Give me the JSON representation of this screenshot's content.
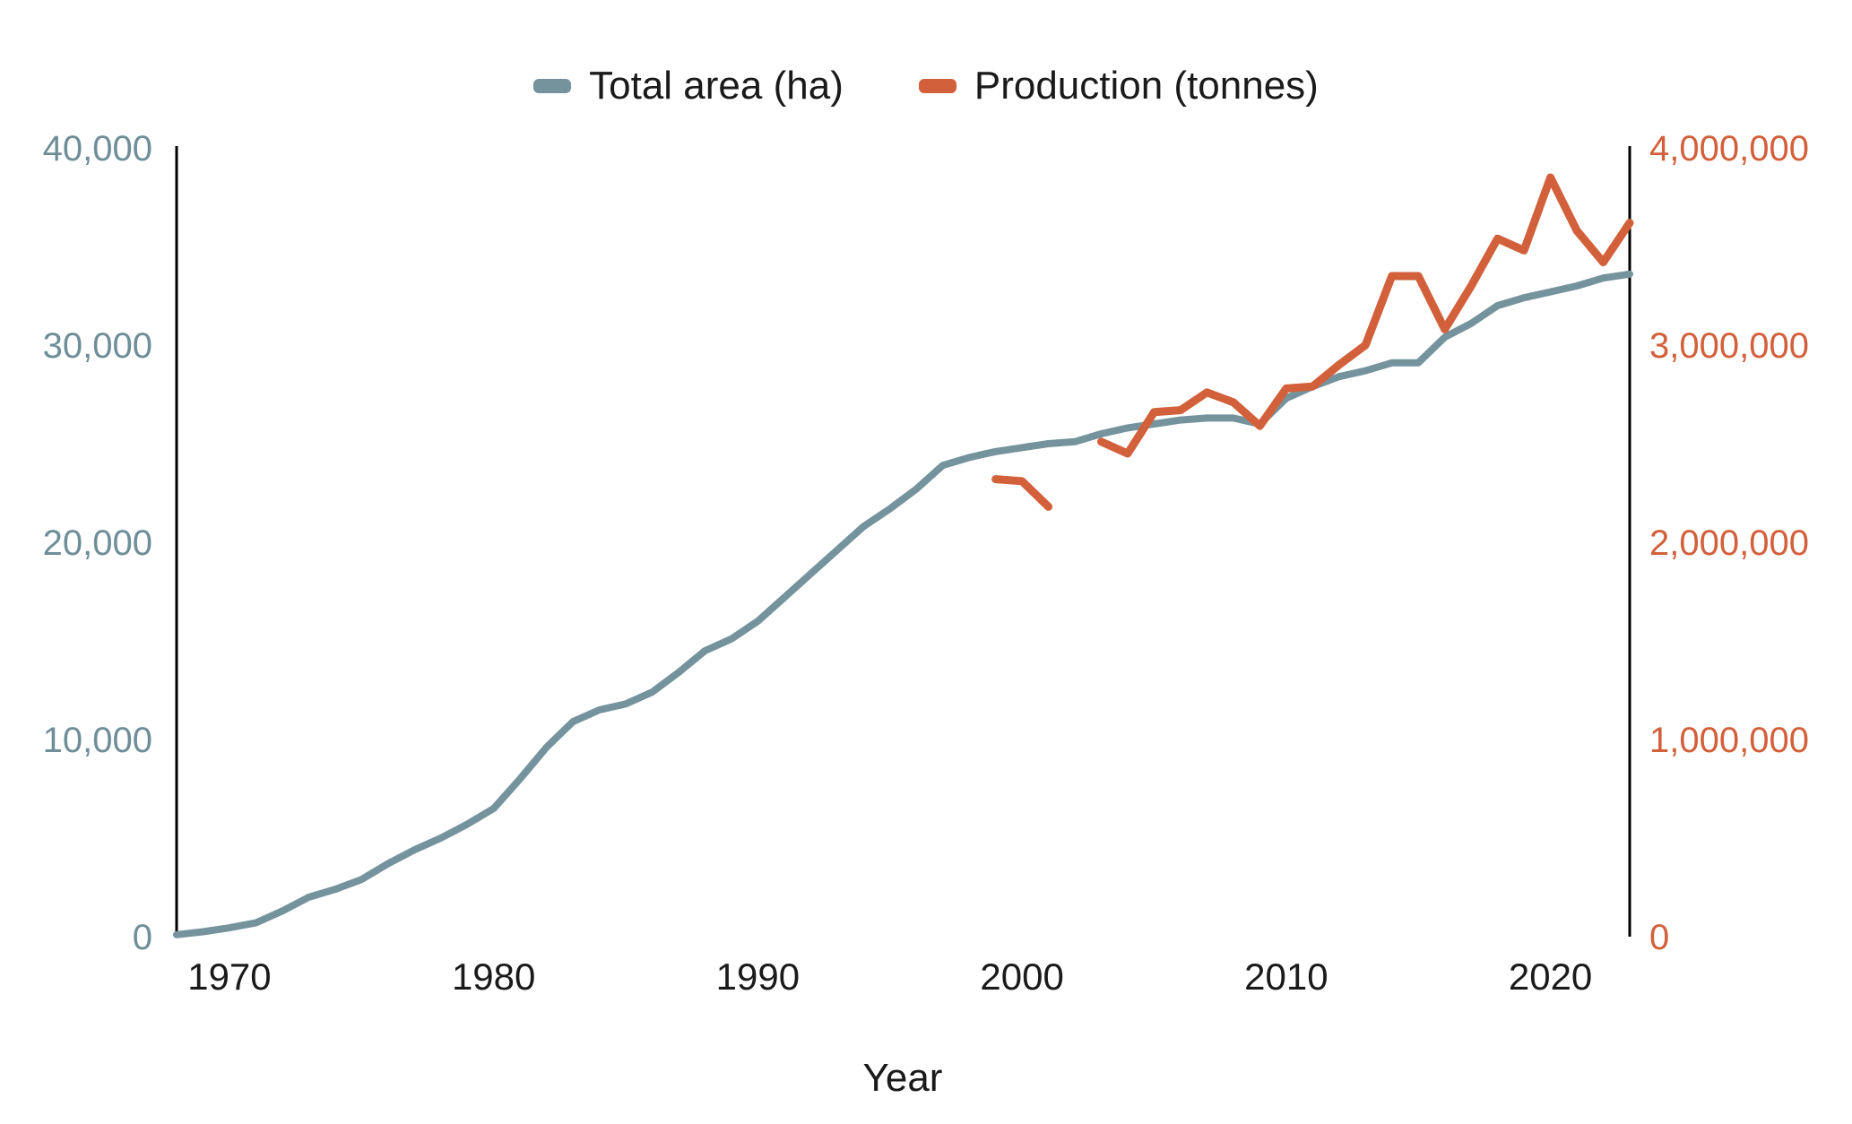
{
  "chart_data": {
    "type": "line",
    "title": "",
    "xlabel": "Year",
    "x_range": [
      1968,
      2023
    ],
    "x_ticks": [
      1970,
      1980,
      1990,
      2000,
      2010,
      2020
    ],
    "grid": false,
    "legend_position": "top",
    "text_color": "#1a1a1a",
    "axis_line_color": "#000000",
    "axes": {
      "left": {
        "range": [
          0,
          40000
        ],
        "tick_values": [
          0,
          10000,
          20000,
          30000,
          40000
        ],
        "tick_labels": [
          "0",
          "10,000",
          "20,000",
          "30,000",
          "40,000"
        ],
        "label_color": "#6F8E98"
      },
      "right": {
        "range": [
          0,
          4000000
        ],
        "tick_values": [
          0,
          1000000,
          2000000,
          3000000,
          4000000
        ],
        "tick_labels": [
          "0",
          "1,000,000",
          "2,000,000",
          "3,000,000",
          "4,000,000"
        ],
        "label_color": "#D2603B"
      }
    },
    "series": [
      {
        "name": "Total area (ha)",
        "axis": "left",
        "color": "#75939D",
        "stroke_width": 8,
        "x": [
          1968,
          1969,
          1970,
          1971,
          1972,
          1973,
          1974,
          1975,
          1976,
          1977,
          1978,
          1979,
          1980,
          1981,
          1982,
          1983,
          1984,
          1985,
          1986,
          1987,
          1988,
          1989,
          1990,
          1991,
          1992,
          1993,
          1994,
          1995,
          1996,
          1997,
          1998,
          1999,
          2000,
          2001,
          2002,
          2003,
          2004,
          2005,
          2006,
          2007,
          2008,
          2009,
          2010,
          2011,
          2012,
          2013,
          2014,
          2015,
          2016,
          2017,
          2018,
          2019,
          2020,
          2021,
          2022,
          2023
        ],
        "values": [
          100,
          250,
          450,
          700,
          1300,
          2000,
          2400,
          2900,
          3700,
          4400,
          5000,
          5700,
          6500,
          8000,
          9600,
          10900,
          11500,
          11800,
          12400,
          13400,
          14500,
          15100,
          16000,
          17200,
          18400,
          19600,
          20800,
          21700,
          22700,
          23900,
          24300,
          24600,
          24800,
          25000,
          25100,
          25500,
          25800,
          26000,
          26200,
          26300,
          26300,
          26000,
          27300,
          27900,
          28400,
          28700,
          29100,
          29100,
          30400,
          31100,
          32000,
          32400,
          32700,
          33000,
          33400,
          33600
        ]
      },
      {
        "name": "Production (tonnes)",
        "axis": "right",
        "color": "#D2603B",
        "stroke_width": 9,
        "x": [
          1999,
          2000,
          2001,
          2002,
          2003,
          2004,
          2005,
          2006,
          2007,
          2008,
          2009,
          2010,
          2011,
          2012,
          2013,
          2014,
          2015,
          2016,
          2017,
          2018,
          2019,
          2020,
          2021,
          2022,
          2023
        ],
        "values": [
          2320000,
          2310000,
          2180000,
          null,
          2510000,
          2450000,
          2660000,
          2670000,
          2760000,
          2710000,
          2590000,
          2780000,
          2790000,
          2900000,
          3000000,
          3350000,
          3350000,
          3080000,
          3300000,
          3540000,
          3480000,
          3850000,
          3580000,
          3420000,
          3620000
        ]
      }
    ]
  }
}
